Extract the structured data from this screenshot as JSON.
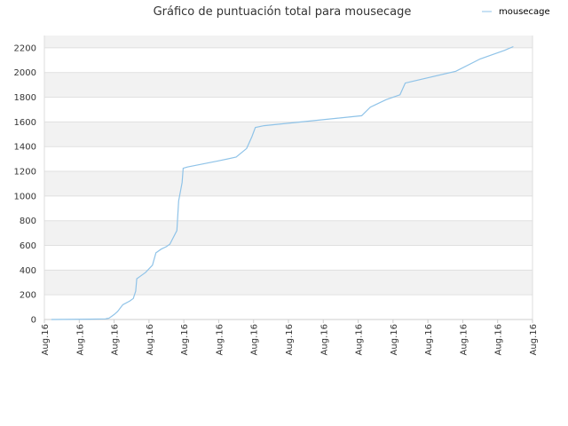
{
  "chart_data": {
    "type": "line",
    "title": "Gráfico de puntuación total para mousecage",
    "xlabel": "",
    "ylabel": "",
    "ylim": [
      0,
      2300
    ],
    "yticks": [
      0,
      200,
      400,
      600,
      800,
      1000,
      1200,
      1400,
      1600,
      1800,
      2000,
      2200
    ],
    "xtick_labels": [
      "Aug.16",
      "Aug.16",
      "Aug.16",
      "Aug.16",
      "Aug.16",
      "Aug.16",
      "Aug.16",
      "Aug.16",
      "Aug.16",
      "Aug.16",
      "Aug.16",
      "Aug.16",
      "Aug.16",
      "Aug.16",
      "Aug.16"
    ],
    "grid": true,
    "legend_position": "top-right",
    "series": [
      {
        "name": "mousecage",
        "color": "#8fc3e8",
        "points": [
          [
            0.2,
            0
          ],
          [
            1.3,
            3
          ],
          [
            1.75,
            5
          ],
          [
            1.8,
            8
          ],
          [
            1.85,
            10
          ],
          [
            2.0,
            40
          ],
          [
            2.1,
            65
          ],
          [
            2.25,
            120
          ],
          [
            2.45,
            150
          ],
          [
            2.55,
            170
          ],
          [
            2.62,
            230
          ],
          [
            2.65,
            330
          ],
          [
            2.75,
            350
          ],
          [
            2.9,
            380
          ],
          [
            3.1,
            440
          ],
          [
            3.2,
            540
          ],
          [
            3.35,
            570
          ],
          [
            3.5,
            590
          ],
          [
            3.6,
            610
          ],
          [
            3.8,
            720
          ],
          [
            3.85,
            960
          ],
          [
            3.95,
            1110
          ],
          [
            3.98,
            1225
          ],
          [
            4.1,
            1235
          ],
          [
            5.0,
            1285
          ],
          [
            5.5,
            1315
          ],
          [
            5.8,
            1385
          ],
          [
            5.95,
            1480
          ],
          [
            6.05,
            1555
          ],
          [
            6.3,
            1570
          ],
          [
            9.1,
            1650
          ],
          [
            9.35,
            1720
          ],
          [
            9.5,
            1740
          ],
          [
            9.8,
            1780
          ],
          [
            10.2,
            1820
          ],
          [
            10.35,
            1915
          ],
          [
            10.5,
            1925
          ],
          [
            11.8,
            2010
          ],
          [
            12.5,
            2110
          ],
          [
            13.2,
            2180
          ],
          [
            13.45,
            2210
          ]
        ]
      }
    ]
  }
}
